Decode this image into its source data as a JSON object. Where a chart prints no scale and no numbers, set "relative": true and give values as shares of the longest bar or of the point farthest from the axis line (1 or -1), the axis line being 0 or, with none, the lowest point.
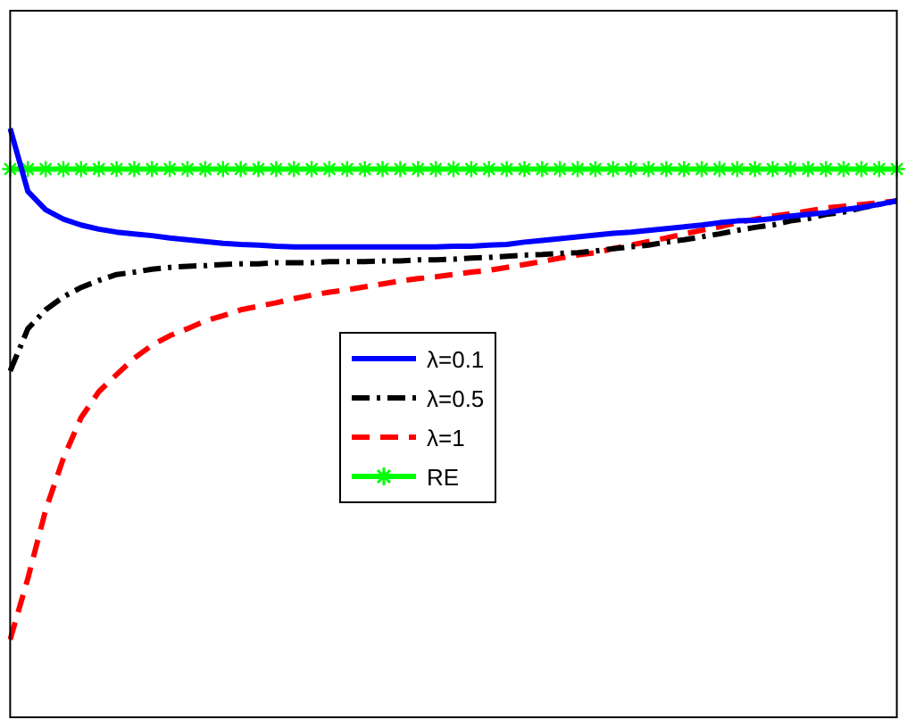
{
  "chart_data": {
    "type": "line",
    "relative": true,
    "legend": "center",
    "grid": false,
    "categories": [
      null,
      null,
      null,
      null,
      null,
      null,
      null,
      null,
      null,
      null,
      null,
      null,
      null,
      null,
      null,
      null,
      null,
      null,
      null,
      null,
      null,
      null,
      null,
      null,
      null,
      null,
      null,
      null,
      null,
      null,
      null,
      null,
      null,
      null,
      null,
      null,
      null,
      null,
      null,
      null,
      null,
      null,
      null,
      null,
      null,
      null,
      null,
      null,
      null,
      null,
      null
    ],
    "series": [
      {
        "name": "λ=0.1",
        "color": "#0000ff",
        "line_style": "solid",
        "marker": "none",
        "values": [
          1.0,
          0.893,
          0.862,
          0.846,
          0.836,
          0.829,
          0.824,
          0.821,
          0.818,
          0.814,
          0.811,
          0.808,
          0.805,
          0.803,
          0.802,
          0.8,
          0.799,
          0.799,
          0.799,
          0.799,
          0.799,
          0.799,
          0.799,
          0.799,
          0.799,
          0.8,
          0.8,
          0.802,
          0.803,
          0.807,
          0.81,
          0.813,
          0.816,
          0.819,
          0.822,
          0.824,
          0.827,
          0.83,
          0.833,
          0.836,
          0.84,
          0.843,
          0.844,
          0.847,
          0.851,
          0.854,
          0.857,
          0.862,
          0.866,
          0.871,
          0.877
        ]
      },
      {
        "name": "λ=0.5",
        "color": "#000000",
        "line_style": "dashdot",
        "marker": "none",
        "values": [
          0.588,
          0.66,
          0.692,
          0.714,
          0.73,
          0.742,
          0.752,
          0.756,
          0.761,
          0.764,
          0.766,
          0.767,
          0.769,
          0.77,
          0.77,
          0.772,
          0.772,
          0.772,
          0.774,
          0.774,
          0.774,
          0.775,
          0.775,
          0.777,
          0.777,
          0.778,
          0.78,
          0.781,
          0.783,
          0.785,
          0.786,
          0.788,
          0.789,
          0.792,
          0.796,
          0.799,
          0.802,
          0.807,
          0.811,
          0.816,
          0.821,
          0.827,
          0.832,
          0.836,
          0.843,
          0.847,
          0.854,
          0.858,
          0.865,
          0.871,
          0.877
        ]
      },
      {
        "name": "λ=1",
        "color": "#ff0000",
        "line_style": "dashed",
        "marker": "none",
        "values": [
          0.132,
          0.236,
          0.352,
          0.44,
          0.509,
          0.553,
          0.582,
          0.61,
          0.632,
          0.648,
          0.66,
          0.673,
          0.682,
          0.692,
          0.698,
          0.704,
          0.711,
          0.717,
          0.722,
          0.726,
          0.731,
          0.736,
          0.741,
          0.745,
          0.748,
          0.752,
          0.756,
          0.759,
          0.764,
          0.769,
          0.774,
          0.78,
          0.785,
          0.789,
          0.796,
          0.802,
          0.808,
          0.814,
          0.821,
          0.827,
          0.833,
          0.84,
          0.846,
          0.851,
          0.855,
          0.86,
          0.865,
          0.868,
          0.871,
          0.874,
          0.877
        ]
      },
      {
        "name": "RE",
        "color": "#00ff00",
        "line_style": "solid",
        "marker": "cross",
        "values": [
          0.931,
          0.931,
          0.931,
          0.931,
          0.931,
          0.931,
          0.931,
          0.931,
          0.931,
          0.931,
          0.931,
          0.931,
          0.931,
          0.931,
          0.931,
          0.931,
          0.931,
          0.931,
          0.931,
          0.931,
          0.931,
          0.931,
          0.931,
          0.931,
          0.931,
          0.931,
          0.931,
          0.931,
          0.931,
          0.931,
          0.931,
          0.931,
          0.931,
          0.931,
          0.931,
          0.931,
          0.931,
          0.931,
          0.931,
          0.931,
          0.931,
          0.931,
          0.931,
          0.931,
          0.931,
          0.931,
          0.931,
          0.931,
          0.931,
          0.931,
          0.931
        ]
      }
    ]
  }
}
